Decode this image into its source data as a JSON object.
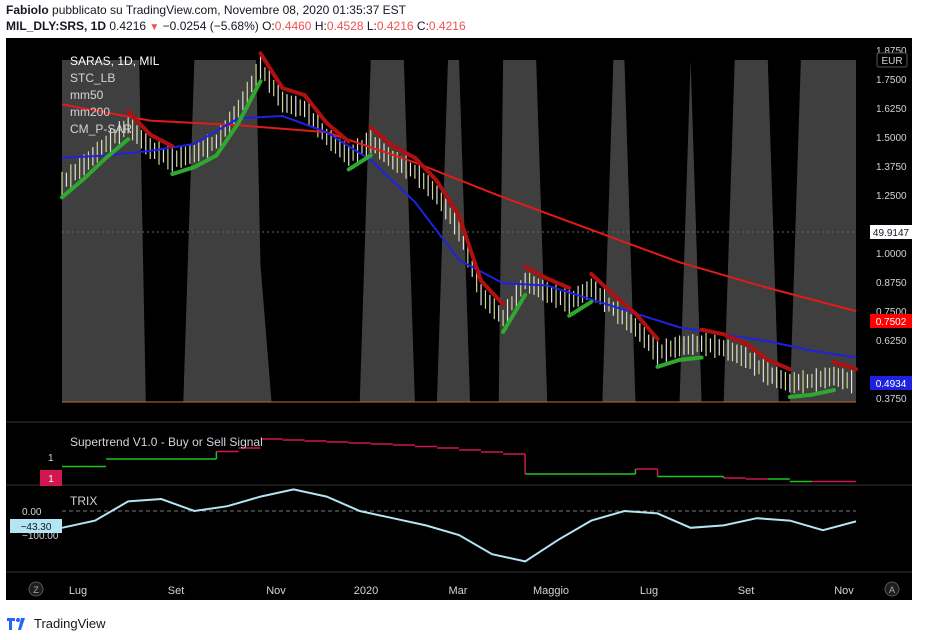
{
  "header": {
    "author": "Fabiolo",
    "published_text": "pubblicato su TradingView.com, Novembre 08, 2020 01:35:37 EST",
    "symbol": "MIL_DLY:SRS, 1D",
    "last": "0.4216",
    "change": "−0.0254 (−5.68%)",
    "o_label": "O:",
    "o_value": "0.4460",
    "h_label": "H:",
    "h_value": "0.4528",
    "l_label": "L:",
    "l_value": "0.4216",
    "c_label": "C:",
    "c_value": "0.4216"
  },
  "legend": {
    "title": "SARAS, 1D, MIL",
    "items": [
      "STC_LB",
      "mm50",
      "mm200",
      "CM_P-SAR"
    ]
  },
  "currency": "EUR",
  "badges": {
    "stc_value": "49.9147",
    "mm200_value": "0.7502",
    "price_value": "0.4934",
    "supertrend_value": "1",
    "trix_value": "−43.30"
  },
  "panes": {
    "supertrend_title": "Supertrend V1.0 - Buy or Sell Signal",
    "trix_title": "TRIX"
  },
  "footer": {
    "brand": "TradingView"
  },
  "colors": {
    "background": "#000000",
    "stc_fill": "#4a4a4a",
    "mm50": "#1e22e0",
    "mm200": "#e01b1b",
    "psar_up": "#2ea82e",
    "psar_down": "#b01010",
    "trix": "#b3e5f5",
    "supertrend_up": "#21c321",
    "supertrend_down": "#d0174f"
  },
  "chart_data": {
    "type": "line",
    "x_ticks": [
      "Lug",
      "Set",
      "Nov",
      "2020",
      "Mar",
      "Maggio",
      "Lug",
      "Set",
      "Nov"
    ],
    "price_axis": {
      "ticks": [
        "1.8750",
        "1.7500",
        "1.6250",
        "1.5000",
        "1.3750",
        "1.2500",
        "1.0000",
        "0.8750",
        "0.7500",
        "0.6250",
        "0.3750"
      ],
      "ylim": [
        0.35,
        1.9
      ]
    },
    "supertrend_axis": {
      "ticks": [
        "1"
      ]
    },
    "trix_axis": {
      "ticks": [
        "0.00",
        "−100.00"
      ]
    },
    "series": [
      {
        "name": "mm50",
        "x": [
          0,
          20,
          40,
          60,
          80,
          100,
          120,
          140,
          160,
          180,
          200,
          220,
          240,
          260,
          280,
          300,
          320,
          340,
          360
        ],
        "values": [
          1.41,
          1.42,
          1.44,
          1.47,
          1.58,
          1.59,
          1.52,
          1.4,
          1.22,
          0.97,
          0.87,
          0.86,
          0.8,
          0.74,
          0.68,
          0.65,
          0.62,
          0.58,
          0.55
        ]
      },
      {
        "name": "mm200",
        "x": [
          0,
          40,
          80,
          120,
          160,
          200,
          240,
          280,
          320,
          360
        ],
        "values": [
          1.64,
          1.57,
          1.55,
          1.52,
          1.39,
          1.24,
          1.1,
          0.96,
          0.85,
          0.75
        ]
      },
      {
        "name": "price",
        "x": [
          0,
          10,
          20,
          30,
          40,
          50,
          60,
          70,
          80,
          90,
          100,
          110,
          120,
          130,
          140,
          150,
          160,
          170,
          180,
          190,
          200,
          210,
          220,
          230,
          240,
          250,
          260,
          270,
          280,
          290,
          300,
          310,
          320,
          330,
          340,
          350,
          360
        ],
        "values": [
          1.3,
          1.38,
          1.47,
          1.55,
          1.45,
          1.4,
          1.43,
          1.48,
          1.62,
          1.8,
          1.65,
          1.62,
          1.5,
          1.42,
          1.48,
          1.4,
          1.35,
          1.25,
          1.1,
          0.82,
          0.72,
          0.88,
          0.83,
          0.79,
          0.85,
          0.76,
          0.68,
          0.57,
          0.6,
          0.61,
          0.59,
          0.55,
          0.48,
          0.44,
          0.45,
          0.47,
          0.44
        ]
      }
    ],
    "stc": {
      "x": [
        0,
        5,
        8,
        12,
        14,
        20,
        30,
        35,
        38,
        40,
        45,
        50,
        55,
        60,
        75,
        80,
        85,
        88,
        90,
        95,
        100,
        105,
        110,
        118,
        120,
        125,
        130,
        135,
        140,
        145,
        150,
        155,
        160,
        165,
        170,
        175,
        180,
        185,
        188,
        190,
        195,
        198,
        200,
        202,
        205,
        210,
        215,
        220,
        225,
        230,
        235,
        240,
        245,
        250,
        255,
        260,
        265,
        270,
        275,
        280,
        285,
        290,
        295,
        300,
        305,
        310,
        315,
        320,
        325,
        330,
        335,
        340,
        345,
        350,
        355,
        360
      ],
      "values": [
        100,
        100,
        100,
        100,
        100,
        100,
        100,
        100,
        0,
        0,
        0,
        0,
        0,
        100,
        100,
        100,
        100,
        100,
        40,
        0,
        0,
        0,
        0,
        0,
        0,
        0,
        0,
        0,
        100,
        100,
        100,
        100,
        0,
        0,
        0,
        100,
        100,
        0,
        0,
        0,
        0,
        0,
        100,
        100,
        100,
        100,
        100,
        0,
        0,
        0,
        0,
        0,
        0,
        100,
        100,
        0,
        0,
        0,
        0,
        0,
        100,
        0,
        0,
        0,
        100,
        100,
        100,
        100,
        0,
        0,
        100,
        100,
        100,
        100,
        100,
        100
      ],
      "current": 49.9147
    },
    "trix": {
      "x": [
        0,
        15,
        30,
        45,
        60,
        75,
        90,
        105,
        120,
        135,
        150,
        165,
        180,
        195,
        210,
        225,
        240,
        255,
        270,
        285,
        300,
        315,
        330,
        345,
        360
      ],
      "values": [
        -70,
        -40,
        40,
        50,
        0,
        20,
        60,
        90,
        60,
        0,
        -30,
        -60,
        -100,
        -180,
        -210,
        -120,
        -40,
        0,
        -10,
        -70,
        -60,
        -30,
        -40,
        -80,
        -43.3
      ]
    },
    "supertrend": {
      "x": [
        0,
        10,
        20,
        30,
        40,
        50,
        60,
        70,
        80,
        90,
        100,
        110,
        120,
        130,
        140,
        150,
        160,
        170,
        180,
        190,
        200,
        210,
        220,
        230,
        240,
        250,
        260,
        270,
        280,
        290,
        300,
        310,
        320,
        330,
        340,
        350,
        360
      ],
      "values": [
        0.35,
        0.35,
        0.5,
        0.5,
        0.5,
        0.5,
        0.5,
        0.65,
        0.72,
        0.9,
        0.88,
        0.86,
        0.84,
        0.82,
        0.8,
        0.78,
        0.75,
        0.72,
        0.68,
        0.64,
        0.6,
        0.2,
        0.2,
        0.2,
        0.2,
        0.2,
        0.3,
        0.15,
        0.15,
        0.15,
        0.12,
        0.1,
        0.1,
        0.05,
        0.05,
        0.05,
        0.04
      ],
      "trend": [
        "up",
        "up",
        "up",
        "up",
        "up",
        "up",
        "up",
        "down",
        "down",
        "down",
        "down",
        "down",
        "down",
        "down",
        "down",
        "down",
        "down",
        "down",
        "down",
        "down",
        "down",
        "up",
        "up",
        "up",
        "up",
        "up",
        "down",
        "up",
        "up",
        "up",
        "down",
        "down",
        "up",
        "up",
        "down",
        "down",
        "down"
      ]
    }
  }
}
